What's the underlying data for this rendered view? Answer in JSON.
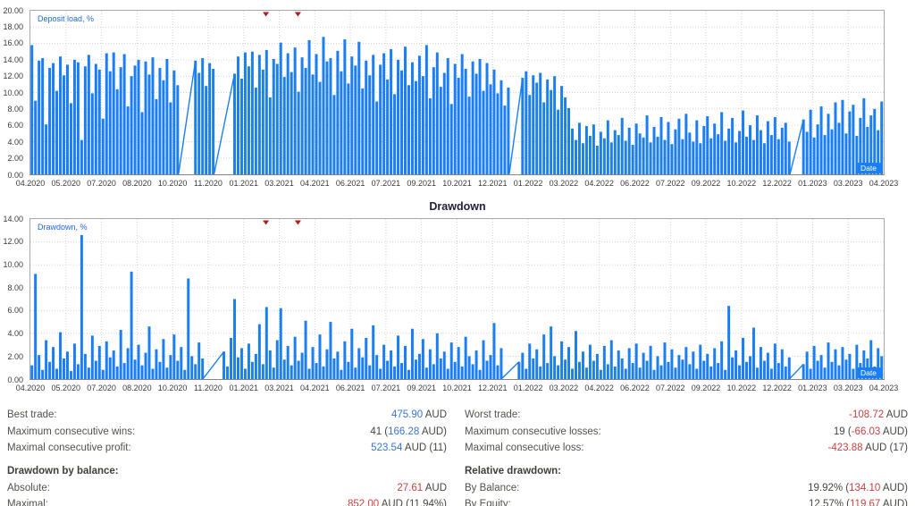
{
  "section_title": "Drawdown",
  "colors": {
    "bar_blue": "#1b7ef2",
    "grid_gray": "#d2d2d2",
    "marker_red": "#b21c1c",
    "positive_value": "#3a76c8",
    "negative_value": "#c84141"
  },
  "chart_data": [
    {
      "type": "bar",
      "label": "Deposit load, %",
      "date_label": "Date",
      "ylim": [
        0,
        20
      ],
      "ytick_step": 2,
      "yticks": [
        "20.00",
        "18.00",
        "16.00",
        "14.00",
        "12.00",
        "10.00",
        "8.00",
        "6.00",
        "4.00",
        "2.00",
        "0.00"
      ],
      "xticklabels": [
        "04.2020",
        "05.2020",
        "07.2020",
        "08.2020",
        "10.2020",
        "11.2020",
        "01.2021",
        "03.2021",
        "04.2021",
        "06.2021",
        "07.2021",
        "09.2021",
        "10.2021",
        "12.2021",
        "01.2022",
        "03.2022",
        "04.2022",
        "06.2022",
        "07.2022",
        "09.2022",
        "10.2022",
        "12.2022",
        "01.2023",
        "03.2023",
        "04.2023"
      ],
      "markers": [
        {
          "x_frac": 0.276,
          "type": "down-arrow"
        },
        {
          "x_frac": 0.3135,
          "type": "down-arrow"
        }
      ],
      "values": [
        15.8,
        9.0,
        13.9,
        14.2,
        6.1,
        13.0,
        13.6,
        10.2,
        14.4,
        12.1,
        13.4,
        8.7,
        14.0,
        13.7,
        4.2,
        13.2,
        14.6,
        9.9,
        13.5,
        12.8,
        6.8,
        14.8,
        12.6,
        14.9,
        10.4,
        13.1,
        14.7,
        8.3,
        12.0,
        13.3,
        14.0,
        7.6,
        13.8,
        12.2,
        14.3,
        9.2,
        13.0,
        11.5,
        14.1,
        8.8,
        12.7,
        10.9,
        null,
        null,
        null,
        null,
        13.9,
        12.4,
        14.2,
        10.8,
        13.6,
        12.9,
        null,
        null,
        null,
        null,
        null,
        12.3,
        14.4,
        11.7,
        14.9,
        13.2,
        15.0,
        10.6,
        14.6,
        12.8,
        15.2,
        9.4,
        14.1,
        13.5,
        16.1,
        11.9,
        14.8,
        12.5,
        15.5,
        10.1,
        14.3,
        13.0,
        16.4,
        12.2,
        14.7,
        11.3,
        16.8,
        13.8,
        14.2,
        9.7,
        15.1,
        12.6,
        16.5,
        11.1,
        14.4,
        13.3,
        16.2,
        10.5,
        13.9,
        12.1,
        14.6,
        8.9,
        13.4,
        14.8,
        11.6,
        15.3,
        9.8,
        14.0,
        12.7,
        15.6,
        10.9,
        13.7,
        11.4,
        14.5,
        12.0,
        15.8,
        9.3,
        13.1,
        14.9,
        10.7,
        12.4,
        14.2,
        8.6,
        13.5,
        11.8,
        14.7,
        12.9,
        9.5,
        13.8,
        12.3,
        14.1,
        10.2,
        13.6,
        11.0,
        12.8,
        9.9,
        11.5,
        8.4,
        10.6,
        null,
        null,
        null,
        11.8,
        12.6,
        9.7,
        12.1,
        11.2,
        12.4,
        8.8,
        11.6,
        10.3,
        12.0,
        7.9,
        10.8,
        9.4,
        8.1,
        5.6,
        4.2,
        6.3,
        3.8,
        5.9,
        4.7,
        6.1,
        3.5,
        5.2,
        4.4,
        6.6,
        3.9,
        5.4,
        4.8,
        6.9,
        4.1,
        5.7,
        3.6,
        6.2,
        5.0,
        4.5,
        7.2,
        3.9,
        5.8,
        4.6,
        7.0,
        4.2,
        6.4,
        3.7,
        5.5,
        6.8,
        4.3,
        7.4,
        5.1,
        4.0,
        6.6,
        3.8,
        5.9,
        7.1,
        4.4,
        6.2,
        4.9,
        7.6,
        4.1,
        5.6,
        6.9,
        3.9,
        5.3,
        7.8,
        4.6,
        6.0,
        4.2,
        7.2,
        5.4,
        3.8,
        6.5,
        4.8,
        7.0,
        4.3,
        5.7,
        6.3,
        4.0,
        null,
        null,
        null,
        6.7,
        5.2,
        7.9,
        4.5,
        6.1,
        8.3,
        4.8,
        7.4,
        5.5,
        8.8,
        6.3,
        9.1,
        5.0,
        7.7,
        8.5,
        4.7,
        6.9,
        9.3,
        5.8,
        7.2,
        8.0,
        5.4,
        8.9
      ]
    },
    {
      "type": "bar",
      "label": "Drawdown, %",
      "date_label": "Date",
      "ylim": [
        0,
        14
      ],
      "ytick_step": 2,
      "yticks": [
        "14.00",
        "12.00",
        "10.00",
        "8.00",
        "6.00",
        "4.00",
        "2.00",
        "0.00"
      ],
      "xticklabels": [
        "04.2020",
        "05.2020",
        "07.2020",
        "08.2020",
        "10.2020",
        "11.2020",
        "01.2021",
        "03.2021",
        "04.2021",
        "06.2021",
        "07.2021",
        "09.2021",
        "10.2021",
        "12.2021",
        "01.2022",
        "03.2022",
        "04.2022",
        "06.2022",
        "07.2022",
        "09.2022",
        "10.2022",
        "12.2022",
        "01.2023",
        "03.2023",
        "04.2023"
      ],
      "markers": [
        {
          "x_frac": 0.276,
          "type": "down-arrow"
        },
        {
          "x_frac": 0.3135,
          "type": "down-arrow"
        }
      ],
      "values": [
        1.2,
        9.2,
        2.1,
        0.8,
        3.4,
        1.5,
        2.8,
        0.9,
        4.1,
        1.8,
        2.4,
        0.7,
        3.1,
        1.3,
        12.6,
        2.2,
        1.0,
        3.8,
        1.6,
        2.9,
        0.8,
        3.3,
        1.9,
        2.5,
        1.1,
        4.3,
        1.4,
        2.7,
        9.4,
        1.7,
        3.0,
        1.2,
        2.3,
        4.6,
        0.9,
        2.6,
        1.5,
        3.5,
        1.0,
        2.1,
        3.9,
        1.6,
        2.8,
        0.8,
        8.8,
        2.0,
        1.3,
        3.2,
        1.8,
        null,
        null,
        null,
        null,
        null,
        2.4,
        1.1,
        3.6,
        7.0,
        1.9,
        2.7,
        0.9,
        3.1,
        1.5,
        2.2,
        4.8,
        1.3,
        6.3,
        2.5,
        1.0,
        3.4,
        6.2,
        1.7,
        2.9,
        1.2,
        3.7,
        1.6,
        2.3,
        5.1,
        0.9,
        2.8,
        1.4,
        3.9,
        1.1,
        2.6,
        5.0,
        1.8,
        2.4,
        0.8,
        3.3,
        1.5,
        4.4,
        1.0,
        2.7,
        1.9,
        3.6,
        1.2,
        4.7,
        2.1,
        0.9,
        3.0,
        1.6,
        2.5,
        1.1,
        3.8,
        1.4,
        2.9,
        0.8,
        4.4,
        1.7,
        2.2,
        3.5,
        1.0,
        2.6,
        1.3,
        4.0,
        1.8,
        2.4,
        0.9,
        3.2,
        1.5,
        2.8,
        1.1,
        3.7,
        2.0,
        1.3,
        2.5,
        0.8,
        3.4,
        1.6,
        2.1,
        4.9,
        1.2,
        2.7,
        null,
        null,
        null,
        null,
        1.5,
        2.3,
        0.9,
        3.1,
        1.8,
        2.6,
        1.1,
        3.9,
        1.4,
        4.6,
        2.0,
        1.2,
        3.3,
        1.7,
        2.8,
        0.9,
        4.2,
        1.5,
        2.4,
        1.0,
        3.0,
        1.6,
        2.2,
        0.8,
        2.9,
        1.3,
        3.4,
        1.1,
        2.5,
        1.8,
        0.9,
        2.7,
        1.4,
        3.1,
        1.0,
        2.3,
        1.6,
        2.9,
        0.8,
        2.0,
        1.2,
        3.2,
        1.5,
        2.6,
        1.0,
        2.1,
        1.7,
        2.8,
        1.3,
        2.4,
        0.9,
        3.0,
        1.6,
        2.2,
        1.1,
        2.7,
        1.4,
        3.3,
        0.8,
        6.4,
        1.9,
        2.5,
        1.2,
        3.6,
        1.5,
        2.0,
        4.5,
        1.0,
        2.8,
        1.6,
        2.3,
        0.9,
        3.1,
        1.4,
        2.6,
        1.1,
        1.9,
        null,
        null,
        null,
        1.3,
        2.4,
        0.9,
        2.9,
        1.6,
        2.1,
        1.0,
        3.2,
        1.5,
        2.6,
        1.2,
        2.8,
        1.7,
        2.2,
        0.9,
        3.0,
        1.4,
        2.5,
        1.8,
        3.4,
        1.1,
        2.7,
        2.0
      ]
    }
  ],
  "stats": {
    "rows": [
      {
        "left": {
          "label": "Best trade:",
          "value": [
            {
              "t": "475.90",
              "c": "pos"
            },
            {
              "t": " AUD",
              "c": "plain"
            }
          ]
        },
        "right": {
          "label": "Worst trade:",
          "value": [
            {
              "t": "-108.72",
              "c": "neg"
            },
            {
              "t": " AUD",
              "c": "plain"
            }
          ]
        }
      },
      {
        "left": {
          "label": "Maximum consecutive wins:",
          "value": [
            {
              "t": "41 (",
              "c": "plain"
            },
            {
              "t": "166.28",
              "c": "pos"
            },
            {
              "t": " AUD)",
              "c": "plain"
            }
          ]
        },
        "right": {
          "label": "Maximum consecutive losses:",
          "value": [
            {
              "t": "19 (",
              "c": "plain"
            },
            {
              "t": "-66.03",
              "c": "neg"
            },
            {
              "t": " AUD)",
              "c": "plain"
            }
          ]
        }
      },
      {
        "left": {
          "label": "Maximal consecutive profit:",
          "value": [
            {
              "t": "523.54",
              "c": "pos"
            },
            {
              "t": " AUD (11)",
              "c": "plain"
            }
          ]
        },
        "right": {
          "label": "Maximal consecutive loss:",
          "value": [
            {
              "t": "-423.88",
              "c": "neg"
            },
            {
              "t": " AUD (17)",
              "c": "plain"
            }
          ]
        }
      },
      {
        "header": true,
        "left": {
          "label": "Drawdown by balance:",
          "value": []
        },
        "right": {
          "label": "Relative drawdown:",
          "value": []
        }
      },
      {
        "left": {
          "label": "Absolute:",
          "value": [
            {
              "t": "27.61",
              "c": "neg"
            },
            {
              "t": " AUD",
              "c": "plain"
            }
          ]
        },
        "right": {
          "label": "By Balance:",
          "value": [
            {
              "t": "19.92% (",
              "c": "plain"
            },
            {
              "t": "134.10",
              "c": "neg"
            },
            {
              "t": " AUD)",
              "c": "plain"
            }
          ]
        }
      },
      {
        "left": {
          "label": "Maximal:",
          "value": [
            {
              "t": "852.00",
              "c": "neg"
            },
            {
              "t": " AUD (11.94%)",
              "c": "plain"
            }
          ]
        },
        "right": {
          "label": "By Equity:",
          "value": [
            {
              "t": "12.57% (",
              "c": "plain"
            },
            {
              "t": "119.67",
              "c": "neg"
            },
            {
              "t": " AUD)",
              "c": "plain"
            }
          ]
        }
      }
    ]
  }
}
